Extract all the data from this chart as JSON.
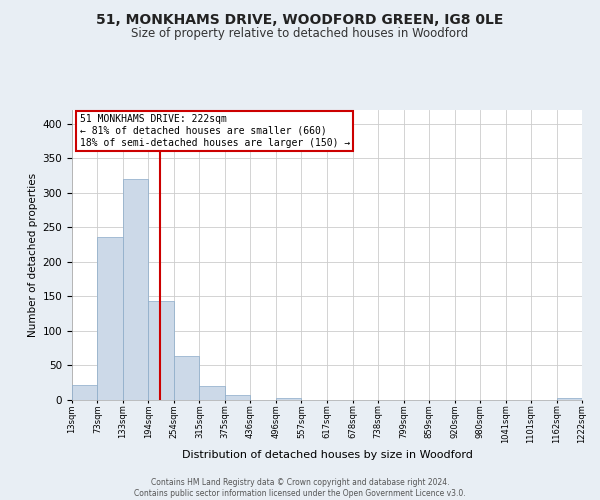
{
  "title": "51, MONKHAMS DRIVE, WOODFORD GREEN, IG8 0LE",
  "subtitle": "Size of property relative to detached houses in Woodford",
  "xlabel": "Distribution of detached houses by size in Woodford",
  "ylabel": "Number of detached properties",
  "bin_edges": [
    13,
    73,
    133,
    194,
    254,
    315,
    375,
    436,
    496,
    557,
    617,
    678,
    738,
    799,
    859,
    920,
    980,
    1041,
    1101,
    1162,
    1222
  ],
  "bin_labels": [
    "13sqm",
    "73sqm",
    "133sqm",
    "194sqm",
    "254sqm",
    "315sqm",
    "375sqm",
    "436sqm",
    "496sqm",
    "557sqm",
    "617sqm",
    "678sqm",
    "738sqm",
    "799sqm",
    "859sqm",
    "920sqm",
    "980sqm",
    "1041sqm",
    "1101sqm",
    "1162sqm",
    "1222sqm"
  ],
  "bar_heights": [
    22,
    236,
    320,
    144,
    64,
    21,
    7,
    0,
    3,
    0,
    0,
    0,
    0,
    0,
    0,
    0,
    0,
    0,
    0,
    3
  ],
  "bar_color": "#ccd9e8",
  "bar_edgecolor": "#8aaac8",
  "property_line_x": 222,
  "property_line_color": "#cc0000",
  "annotation_line1": "51 MONKHAMS DRIVE: 222sqm",
  "annotation_line2": "← 81% of detached houses are smaller (660)",
  "annotation_line3": "18% of semi-detached houses are larger (150) →",
  "annotation_box_color": "#cc0000",
  "ylim": [
    0,
    420
  ],
  "yticks": [
    0,
    50,
    100,
    150,
    200,
    250,
    300,
    350,
    400
  ],
  "background_color": "#e8eef4",
  "plot_bg_color": "#ffffff",
  "footer_line1": "Contains HM Land Registry data © Crown copyright and database right 2024.",
  "footer_line2": "Contains public sector information licensed under the Open Government Licence v3.0.",
  "title_fontsize": 10,
  "subtitle_fontsize": 8.5
}
